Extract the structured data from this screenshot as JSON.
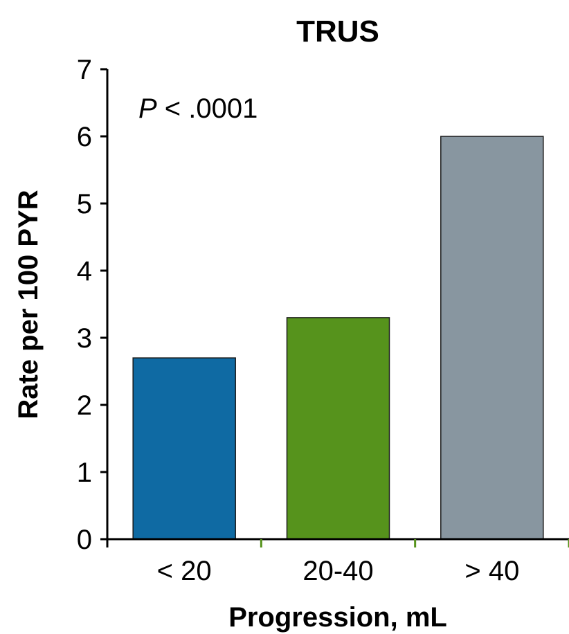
{
  "chart_data": {
    "type": "bar",
    "title": "TRUS",
    "xlabel": "Progression, mL",
    "ylabel": "Rate per 100 PYR",
    "categories": [
      "< 20",
      "20-40",
      "> 40"
    ],
    "values": [
      2.7,
      3.3,
      6.0
    ],
    "bar_colors": [
      "#0f6aa3",
      "#56931c",
      "#8896a0"
    ],
    "ylim": [
      0,
      7
    ],
    "yticks": [
      "0",
      "1",
      "2",
      "3",
      "4",
      "5",
      "6",
      "7"
    ],
    "grid": false,
    "legend": "none",
    "annotation": {
      "italic_part": "P",
      "rest": " < .0001"
    }
  }
}
